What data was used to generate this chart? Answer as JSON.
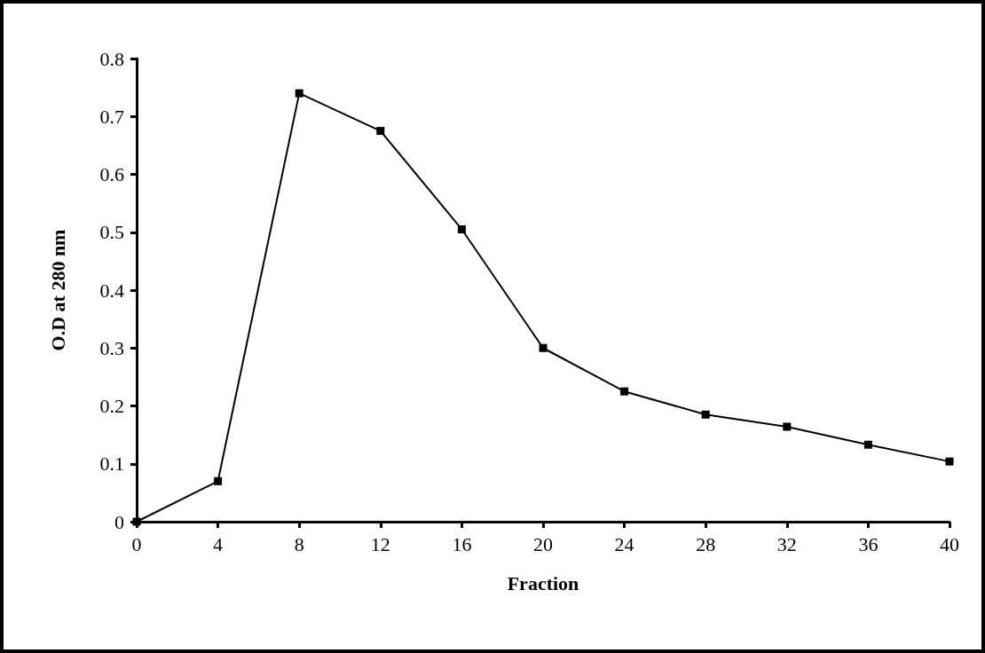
{
  "chart_data": {
    "type": "line",
    "xlabel": "Fraction",
    "ylabel": "O.D at 280 nm",
    "x": [
      0,
      4,
      8,
      12,
      16,
      20,
      24,
      28,
      32,
      36,
      40
    ],
    "series": [
      {
        "color": "#000000",
        "values": [
          0,
          0.07,
          0.74,
          0.675,
          0.505,
          0.3,
          0.225,
          0.185,
          0.164,
          0.133,
          0.104
        ]
      }
    ],
    "xlim": [
      0,
      40
    ],
    "xticks": [
      0,
      4,
      8,
      12,
      16,
      20,
      24,
      28,
      32,
      36,
      40
    ],
    "ylim": [
      0,
      0.8
    ],
    "yticks": [
      0,
      0.1,
      0.2,
      0.3,
      0.4,
      0.5,
      0.6,
      0.7,
      0.8
    ],
    "grid": false,
    "marker": "square",
    "line_style": "solid"
  }
}
